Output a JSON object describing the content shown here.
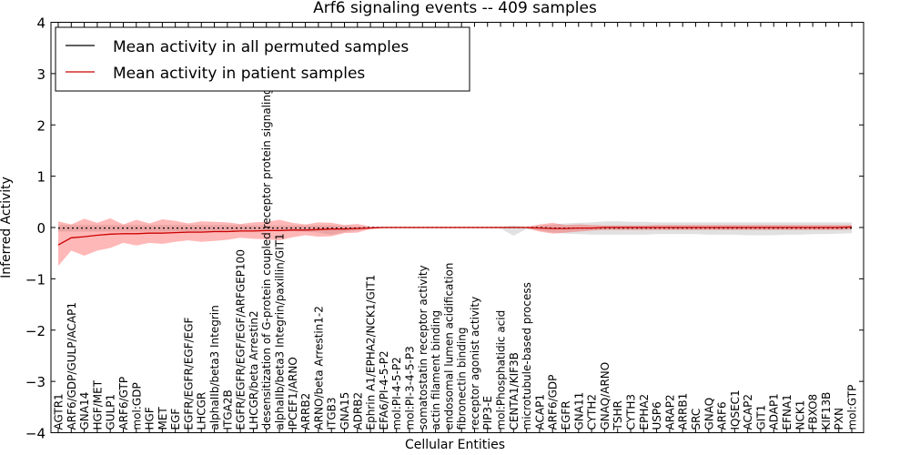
{
  "chart_data": {
    "type": "line",
    "title": "Arf6 signaling events -- 409 samples",
    "xlabel": "Cellular Entities",
    "ylabel": "Inferred Activity",
    "ylim": [
      -4,
      4
    ],
    "yticks": [
      "−4",
      "−3",
      "−2",
      "−1",
      "0",
      "1",
      "2",
      "3",
      "4"
    ],
    "grid": false,
    "legend_position": "top-left",
    "categories": [
      "AGTR1",
      "ARF6/GDP/GULP/ACAP1",
      "GNA14",
      "HGF/MET",
      "GULP1",
      "ARF6/GTP",
      "mol:GDP",
      "HGF",
      "MET",
      "EGF",
      "EGFR/EGFR/EGF/EGF",
      "LHCGR",
      "alphaIIb/beta3 Integrin",
      "ITGA2B",
      "EGFR/EGFR/EGF/EGF/ARFGEP100",
      "LHCGR/beta Arrestin2",
      "desensitization of G-protein coupled receptor protein signaling pathway",
      "alphaIIb/beta3 Integrin/paxillin/GIT1",
      "IPCEF1/ARNO",
      "ARRB2",
      "ARNO/beta Arrestin1-2",
      "ITGB3",
      "GNA15",
      "ADRB2",
      "Ephrin A1/EPHA2/NCK1/GIT1",
      "EFA6/PI-4-5-P2",
      "mol:PI-4-5-P2",
      "mol:PI-3-4-5-P3",
      "somatostatin receptor activity",
      "actin filament binding",
      "endosomal lumen acidification",
      "fibronectin binding",
      "receptor agonist activity",
      "PIP3-E",
      "mol:Phosphatidic acid",
      "CENTA1/KIF3B",
      "microtubule-based process",
      "ACAP1",
      "ARF6/GDP",
      "EGFR",
      "GNA11",
      "CYTH2",
      "GNAQ/ARNO",
      "TSHR",
      "CYTH3",
      "EPHA2",
      "USP6",
      "ARAP2",
      "ARRB1",
      "SRC",
      "GNAQ",
      "ARF6",
      "IQSEC1",
      "ACAP2",
      "GIT1",
      "ADAP1",
      "EFNA1",
      "NCK1",
      "FBXO8",
      "KIF13B",
      "PXN",
      "mol:GTP"
    ],
    "series": [
      {
        "name": "Mean activity in all permuted samples",
        "color": "#000000",
        "values": [
          -0.01,
          -0.01,
          -0.01,
          -0.01,
          -0.01,
          -0.01,
          -0.01,
          -0.01,
          -0.01,
          -0.01,
          -0.01,
          -0.01,
          -0.01,
          -0.01,
          -0.01,
          -0.01,
          -0.01,
          -0.01,
          -0.01,
          -0.01,
          -0.01,
          -0.01,
          -0.01,
          -0.01,
          0,
          0,
          0,
          0,
          0,
          0,
          0,
          0,
          0,
          0,
          0,
          0,
          0,
          0,
          -0.01,
          -0.01,
          -0.01,
          -0.01,
          -0.01,
          -0.01,
          -0.01,
          -0.01,
          -0.01,
          -0.01,
          -0.01,
          -0.01,
          -0.01,
          -0.01,
          -0.01,
          -0.01,
          -0.01,
          -0.01,
          -0.01,
          -0.01,
          -0.01,
          -0.01,
          -0.01,
          -0.01
        ],
        "band_upper": [
          0.05,
          0.05,
          0.05,
          0.05,
          0.05,
          0.05,
          0.05,
          0.05,
          0.05,
          0.05,
          0.05,
          0.05,
          0.05,
          0.05,
          0.05,
          0.04,
          0.04,
          0.04,
          0.04,
          0.04,
          0.04,
          0.04,
          0.03,
          0.02,
          0.01,
          0.01,
          0.01,
          0.01,
          0.01,
          0.01,
          0.01,
          0.01,
          0.01,
          0.01,
          0.01,
          0.04,
          0.01,
          0.03,
          0.06,
          0.08,
          0.09,
          0.1,
          0.12,
          0.12,
          0.11,
          0.11,
          0.1,
          0.1,
          0.1,
          0.1,
          0.1,
          0.1,
          0.1,
          0.1,
          0.1,
          0.1,
          0.1,
          0.1,
          0.1,
          0.1,
          0.1,
          0.1
        ],
        "band_lower": [
          -0.08,
          -0.08,
          -0.08,
          -0.08,
          -0.08,
          -0.08,
          -0.08,
          -0.08,
          -0.08,
          -0.08,
          -0.08,
          -0.08,
          -0.08,
          -0.08,
          -0.08,
          -0.07,
          -0.07,
          -0.07,
          -0.07,
          -0.08,
          -0.1,
          -0.14,
          -0.09,
          -0.06,
          -0.01,
          -0.01,
          -0.01,
          -0.01,
          -0.01,
          -0.01,
          -0.01,
          -0.01,
          -0.01,
          -0.01,
          -0.02,
          -0.16,
          -0.03,
          -0.06,
          -0.1,
          -0.12,
          -0.13,
          -0.14,
          -0.14,
          -0.14,
          -0.14,
          -0.14,
          -0.13,
          -0.13,
          -0.13,
          -0.13,
          -0.14,
          -0.14,
          -0.14,
          -0.15,
          -0.15,
          -0.15,
          -0.14,
          -0.14,
          -0.13,
          -0.13,
          -0.12,
          -0.11
        ]
      },
      {
        "name": "Mean activity in patient samples",
        "color": "#cc0000",
        "values": [
          -0.34,
          -0.2,
          -0.18,
          -0.15,
          -0.13,
          -0.12,
          -0.12,
          -0.11,
          -0.11,
          -0.1,
          -0.09,
          -0.09,
          -0.08,
          -0.08,
          -0.07,
          -0.07,
          -0.06,
          -0.06,
          -0.05,
          -0.05,
          -0.04,
          -0.03,
          -0.03,
          -0.02,
          -0.01,
          0,
          0,
          0,
          0,
          0,
          0,
          0,
          0,
          0,
          0,
          0,
          0,
          -0.01,
          -0.02,
          -0.02,
          -0.01,
          -0.01,
          0,
          0,
          0,
          0,
          0,
          0,
          0,
          0,
          0,
          0,
          0,
          0,
          0,
          0,
          0,
          0,
          0,
          0,
          0,
          0.01
        ],
        "band_upper": [
          0.12,
          0.06,
          0.17,
          0.09,
          0.18,
          0.06,
          0.15,
          0.08,
          0.16,
          0.13,
          0.08,
          0.12,
          0.11,
          0.1,
          0.07,
          0.1,
          0.11,
          0.15,
          0.09,
          0.06,
          0.1,
          0.09,
          0.05,
          0.07,
          0.02,
          0.01,
          0.01,
          0.01,
          0.01,
          0.01,
          0.01,
          0.01,
          0.01,
          0.01,
          0.01,
          0.01,
          0.01,
          0.06,
          0.09,
          0.05,
          0.06,
          0.05,
          0.04,
          0.04,
          0.04,
          0.04,
          0.05,
          0.05,
          0.05,
          0.05,
          0.05,
          0.05,
          0.05,
          0.05,
          0.05,
          0.05,
          0.05,
          0.05,
          0.05,
          0.05,
          0.05,
          0.05
        ],
        "band_lower": [
          -0.75,
          -0.45,
          -0.55,
          -0.45,
          -0.4,
          -0.3,
          -0.35,
          -0.3,
          -0.32,
          -0.28,
          -0.25,
          -0.28,
          -0.26,
          -0.24,
          -0.2,
          -0.22,
          -0.23,
          -0.25,
          -0.19,
          -0.15,
          -0.18,
          -0.17,
          -0.11,
          -0.1,
          -0.03,
          -0.01,
          -0.01,
          -0.01,
          -0.01,
          -0.01,
          -0.01,
          -0.01,
          -0.01,
          -0.01,
          -0.01,
          -0.01,
          -0.01,
          -0.08,
          -0.12,
          -0.1,
          -0.08,
          -0.06,
          -0.05,
          -0.05,
          -0.05,
          -0.05,
          -0.05,
          -0.05,
          -0.05,
          -0.05,
          -0.05,
          -0.05,
          -0.05,
          -0.05,
          -0.05,
          -0.05,
          -0.05,
          -0.05,
          -0.05,
          -0.05,
          -0.05,
          -0.04
        ]
      }
    ]
  }
}
